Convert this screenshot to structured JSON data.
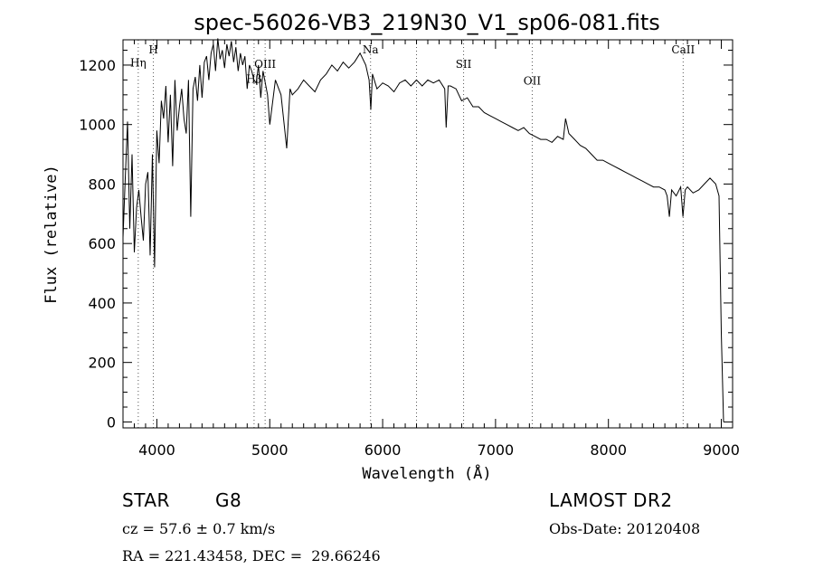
{
  "chart_data": {
    "type": "line",
    "title": "spec-56026-VB3_219N30_V1_sp06-081.fits",
    "xlabel": "Wavelength (Å)",
    "ylabel": "Flux (relative)",
    "xlim": [
      3700,
      9100
    ],
    "ylim": [
      -20,
      1285
    ],
    "x_ticks": [
      4000,
      5000,
      6000,
      7000,
      8000,
      9000
    ],
    "y_ticks": [
      0,
      200,
      400,
      600,
      800,
      1000,
      1200
    ],
    "grid": false,
    "legend": "none",
    "line_color": "#000000",
    "marker_color": "#555555",
    "spectral_lines": [
      {
        "label": "Hη",
        "x": 3835,
        "label_y": 1195
      },
      {
        "label": "H",
        "x": 3969,
        "label_y": 1240
      },
      {
        "label": "Hβ",
        "x": 4861,
        "label_y": 1140
      },
      {
        "label": "OIII",
        "x": 4959,
        "label_y": 1190
      },
      {
        "label": "Na",
        "x": 5893,
        "label_y": 1240
      },
      {
        "label": "",
        "x": 6300,
        "label_y": 0
      },
      {
        "label": "SII",
        "x": 6717,
        "label_y": 1190
      },
      {
        "label": "OII",
        "x": 7325,
        "label_y": 1135
      },
      {
        "label": "CaII",
        "x": 8662,
        "label_y": 1240
      }
    ],
    "series": [
      {
        "x": [
          3700,
          3720,
          3740,
          3760,
          3780,
          3800,
          3820,
          3840,
          3860,
          3880,
          3900,
          3920,
          3940,
          3960,
          3980,
          4000,
          4020,
          4040,
          4060,
          4080,
          4100,
          4120,
          4140,
          4160,
          4180,
          4200,
          4220,
          4240,
          4260,
          4280,
          4300,
          4320,
          4340,
          4360,
          4380,
          4400,
          4420,
          4440,
          4460,
          4480,
          4500,
          4520,
          4540,
          4560,
          4580,
          4600,
          4620,
          4640,
          4660,
          4680,
          4700,
          4720,
          4740,
          4760,
          4780,
          4800,
          4820,
          4840,
          4860,
          4880,
          4900,
          4920,
          4940,
          4960,
          4980,
          5000,
          5050,
          5100,
          5150,
          5180,
          5200,
          5250,
          5300,
          5350,
          5400,
          5450,
          5500,
          5550,
          5600,
          5650,
          5700,
          5750,
          5800,
          5850,
          5880,
          5895,
          5910,
          5950,
          6000,
          6050,
          6100,
          6150,
          6200,
          6250,
          6300,
          6350,
          6400,
          6450,
          6500,
          6550,
          6563,
          6580,
          6600,
          6650,
          6700,
          6750,
          6800,
          6850,
          6900,
          6950,
          7000,
          7050,
          7100,
          7150,
          7200,
          7250,
          7300,
          7350,
          7400,
          7450,
          7500,
          7550,
          7600,
          7620,
          7650,
          7700,
          7750,
          7800,
          7850,
          7900,
          7950,
          8000,
          8050,
          8100,
          8150,
          8200,
          8250,
          8300,
          8350,
          8400,
          8450,
          8500,
          8520,
          8540,
          8560,
          8600,
          8640,
          8660,
          8680,
          8700,
          8750,
          8800,
          8850,
          8900,
          8950,
          8980,
          9000,
          9020
        ],
        "y": [
          620,
          820,
          1010,
          650,
          900,
          570,
          720,
          780,
          690,
          610,
          800,
          840,
          560,
          900,
          520,
          980,
          870,
          1080,
          1020,
          1130,
          940,
          1100,
          860,
          1150,
          980,
          1060,
          1120,
          1020,
          970,
          1150,
          690,
          1120,
          1160,
          1080,
          1200,
          1090,
          1210,
          1230,
          1150,
          1240,
          1270,
          1180,
          1290,
          1220,
          1250,
          1190,
          1270,
          1230,
          1280,
          1210,
          1260,
          1180,
          1240,
          1200,
          1230,
          1120,
          1200,
          1180,
          1150,
          1140,
          1200,
          1090,
          1180,
          1140,
          1100,
          1000,
          1150,
          1100,
          920,
          1120,
          1100,
          1120,
          1150,
          1130,
          1110,
          1150,
          1170,
          1200,
          1180,
          1210,
          1190,
          1210,
          1240,
          1200,
          1150,
          1050,
          1170,
          1120,
          1140,
          1130,
          1110,
          1140,
          1150,
          1130,
          1150,
          1130,
          1150,
          1140,
          1150,
          1120,
          990,
          1130,
          1130,
          1120,
          1080,
          1090,
          1060,
          1060,
          1040,
          1030,
          1020,
          1010,
          1000,
          990,
          980,
          990,
          970,
          960,
          950,
          950,
          940,
          960,
          950,
          1020,
          970,
          950,
          930,
          920,
          900,
          880,
          880,
          870,
          860,
          850,
          840,
          830,
          820,
          810,
          800,
          790,
          790,
          780,
          760,
          690,
          780,
          760,
          790,
          690,
          780,
          790,
          770,
          780,
          800,
          820,
          800,
          760,
          300,
          0
        ]
      }
    ]
  },
  "info": {
    "object_class": "STAR",
    "subclass": "G8",
    "survey": "LAMOST DR2",
    "cz": "cz = 57.6 ± 0.7 km/s",
    "obs_date": "Obs-Date: 20120408",
    "coords": "RA = 221.43458, DEC =  29.66246"
  }
}
